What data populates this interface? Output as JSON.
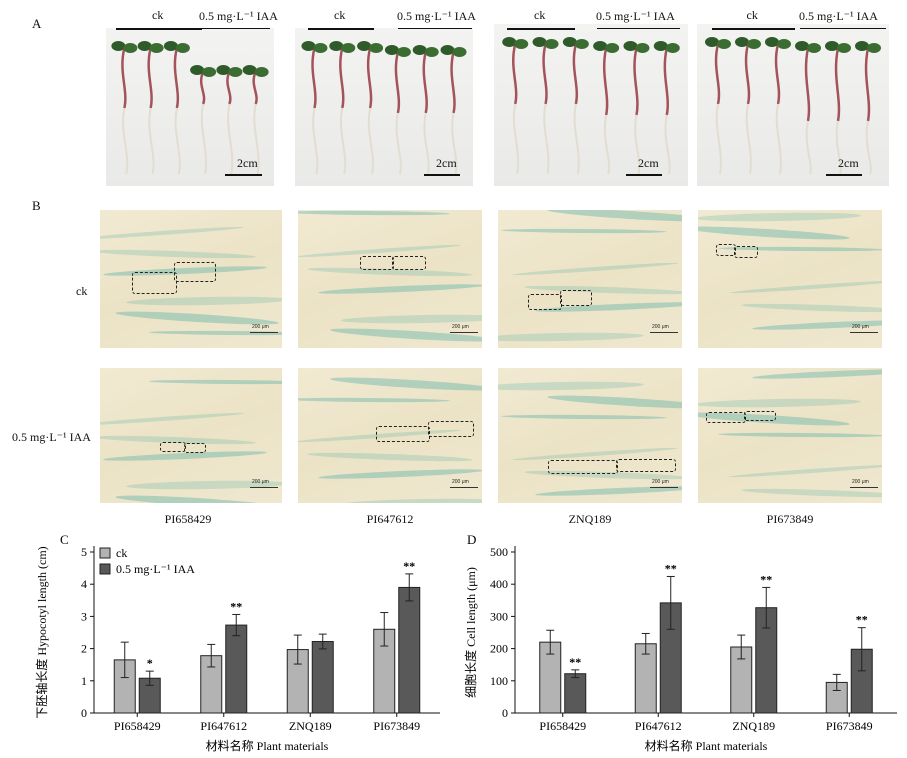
{
  "panel_a": {
    "letter": "A",
    "groups": [
      {
        "ck": "ck",
        "iaa": "0.5 mg·L⁻¹ IAA",
        "scale": "2cm"
      },
      {
        "ck": "ck",
        "iaa": "0.5 mg·L⁻¹ IAA",
        "scale": "2cm"
      },
      {
        "ck": "ck",
        "iaa": "0.5 mg·L⁻¹ IAA",
        "scale": "2cm"
      },
      {
        "ck": "ck",
        "iaa": "0.5 mg·L⁻¹ IAA",
        "scale": "2cm"
      }
    ]
  },
  "panel_b": {
    "letter": "B",
    "row_ck": "ck",
    "row_iaa": "0.5 mg·L⁻¹ IAA",
    "scale_text": "200 μm",
    "columns": [
      "PI658429",
      "PI647612",
      "ZNQ189",
      "PI673849"
    ]
  },
  "chart_data": [
    {
      "panel": "C",
      "type": "bar",
      "categories": [
        "PI658429",
        "PI647612",
        "ZNQ189",
        "PI673849"
      ],
      "series": [
        {
          "name": "ck",
          "values": [
            1.65,
            1.78,
            1.97,
            2.6
          ],
          "errors": [
            0.55,
            0.35,
            0.45,
            0.52
          ],
          "color": "#b3b3b3"
        },
        {
          "name": "0.5 mg·L⁻¹ IAA",
          "values": [
            1.08,
            2.73,
            2.22,
            3.9
          ],
          "errors": [
            0.22,
            0.33,
            0.23,
            0.42
          ],
          "color": "#595959"
        }
      ],
      "significance": [
        "*",
        "**",
        "",
        "**"
      ],
      "ylabel": "下胚轴长度 Hypocotyl length (cm)",
      "xlabel": "材料名称 Plant materials",
      "ylim": [
        0,
        5
      ],
      "yticks": [
        0,
        1,
        2,
        3,
        4,
        5
      ],
      "legend": "top-left"
    },
    {
      "panel": "D",
      "type": "bar",
      "categories": [
        "PI658429",
        "PI647612",
        "ZNQ189",
        "PI673849"
      ],
      "series": [
        {
          "name": "ck",
          "values": [
            220,
            215,
            205,
            95
          ],
          "errors": [
            37,
            32,
            37,
            25
          ],
          "color": "#b3b3b3"
        },
        {
          "name": "0.5 mg·L⁻¹ IAA",
          "values": [
            122,
            342,
            327,
            198
          ],
          "errors": [
            12,
            82,
            63,
            67
          ],
          "color": "#595959"
        }
      ],
      "significance": [
        "**",
        "**",
        "**",
        "**"
      ],
      "ylabel": "细胞长度 Cell length (μm)",
      "xlabel": "材料名称 Plant materials",
      "ylim": [
        0,
        500
      ],
      "yticks": [
        0,
        100,
        200,
        300,
        400,
        500
      ]
    }
  ]
}
